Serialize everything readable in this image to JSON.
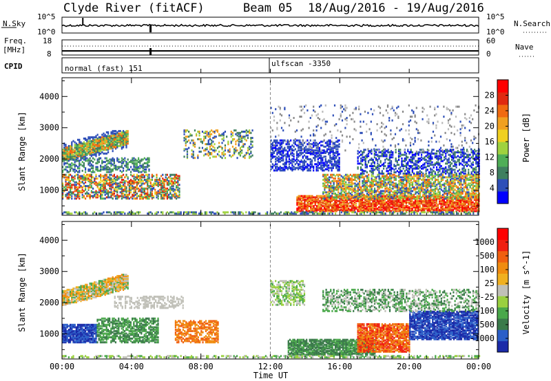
{
  "header": {
    "station": "Clyde River (fitACF)",
    "beam": "Beam 05",
    "date_range": "18/Aug/2016 - 19/Aug/2016"
  },
  "noise_panel": {
    "left_label": "N.Sky",
    "left_top_tick": "10^5",
    "left_bottom_tick": "10^0",
    "right_top_tick": "10^5",
    "right_bottom_tick": "10^0",
    "right_label": "N.Search"
  },
  "freq_panel": {
    "left_label_top": "Freq.",
    "left_label_unit": "[MHz]",
    "left_top_tick": "18",
    "left_bottom_tick": "8",
    "right_top_tick": "60",
    "right_bottom_tick": "0",
    "right_label": "Nave"
  },
  "cpid_panel": {
    "label": "CPID",
    "segments": [
      {
        "name": "normal (fast) 151",
        "start_hour": 0
      },
      {
        "name": "ulfscan -3350",
        "start_hour": 12
      }
    ]
  },
  "chart_data": [
    {
      "type": "heatmap",
      "panel": "power",
      "ylabel": "Slant Range [km]",
      "xlabel": "Time UT",
      "x_range_hours": [
        0,
        24
      ],
      "x_ticks": [
        "00:00",
        "04:00",
        "08:00",
        "12:00",
        "16:00",
        "20:00",
        "00:00"
      ],
      "ylim": [
        200,
        4600
      ],
      "y_ticks": [
        1000,
        2000,
        3000,
        4000
      ],
      "colorbar": {
        "label": "Power [dB]",
        "ticks": [
          "4",
          "8",
          "12",
          "16",
          "20",
          "24",
          "28"
        ],
        "range": [
          0,
          30
        ],
        "colors": [
          "#0000ff",
          "#2e4fb8",
          "#3f7f5f",
          "#4fae57",
          "#9fd23f",
          "#f0d020",
          "#f0a020",
          "#f06a10",
          "#e02a10",
          "#ff0000"
        ]
      }
    },
    {
      "type": "heatmap",
      "panel": "velocity",
      "ylabel": "Slant Range [km]",
      "xlabel": "Time UT",
      "x_range_hours": [
        0,
        24
      ],
      "x_ticks": [
        "00:00",
        "04:00",
        "08:00",
        "12:00",
        "16:00",
        "20:00",
        "00:00"
      ],
      "ylim": [
        200,
        4600
      ],
      "y_ticks": [
        1000,
        2000,
        3000,
        4000
      ],
      "colorbar": {
        "label": "Velocity [m s^-1]",
        "ticks": [
          "1000",
          "500",
          "100",
          "25",
          "-25",
          "-100",
          "-500",
          "-1000"
        ],
        "colors": [
          "#1a2aa8",
          "#2b5fc8",
          "#3a7a4a",
          "#4aa84a",
          "#9ad040",
          "#c0c0b8",
          "#f0b020",
          "#f08c10",
          "#f06010",
          "#f02010",
          "#ff0000"
        ]
      }
    }
  ],
  "footer": {
    "xlabel": "Time UT"
  }
}
